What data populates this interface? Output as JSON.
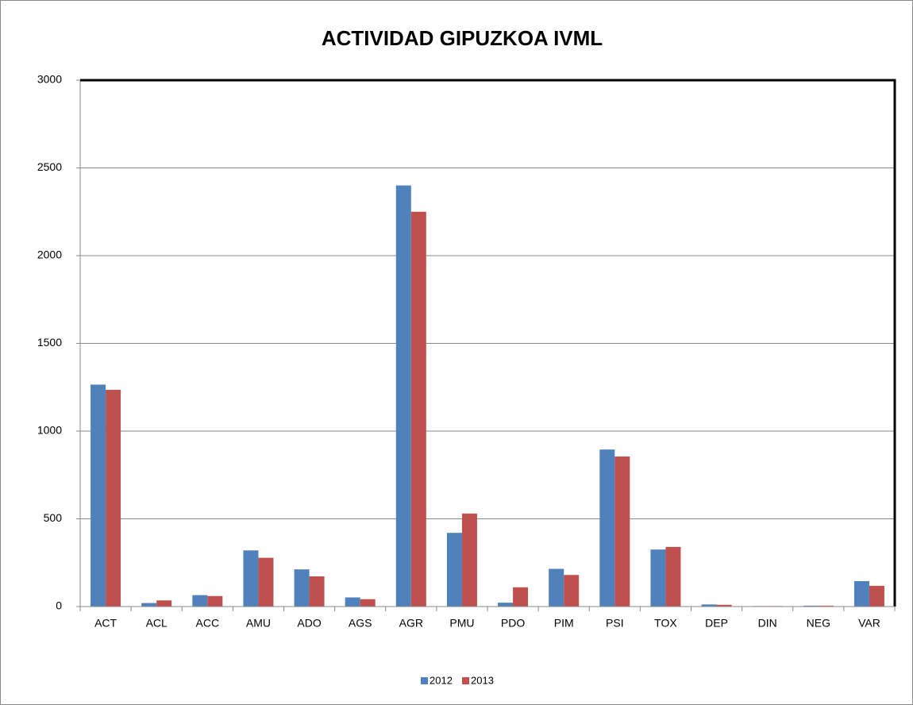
{
  "chart_data": {
    "type": "bar",
    "title": "ACTIVIDAD GIPUZKOA IVML",
    "categories": [
      "ACT",
      "ACL",
      "ACC",
      "AMU",
      "ADO",
      "AGS",
      "AGR",
      "PMU",
      "PDO",
      "PIM",
      "PSI",
      "TOX",
      "DEP",
      "DIN",
      "NEG",
      "VAR"
    ],
    "series": [
      {
        "name": "2012",
        "color": "#4f81bd",
        "values": [
          1265,
          20,
          65,
          320,
          212,
          52,
          2400,
          420,
          22,
          215,
          895,
          325,
          12,
          3,
          5,
          145
        ]
      },
      {
        "name": "2013",
        "color": "#c0504d",
        "values": [
          1235,
          35,
          60,
          278,
          172,
          42,
          2250,
          530,
          110,
          180,
          855,
          340,
          10,
          3,
          5,
          118
        ]
      }
    ],
    "ylim": [
      0,
      3000
    ],
    "yticks": [
      0,
      500,
      1000,
      1500,
      2000,
      2500,
      3000
    ],
    "grid": true,
    "legend": "bottom"
  }
}
